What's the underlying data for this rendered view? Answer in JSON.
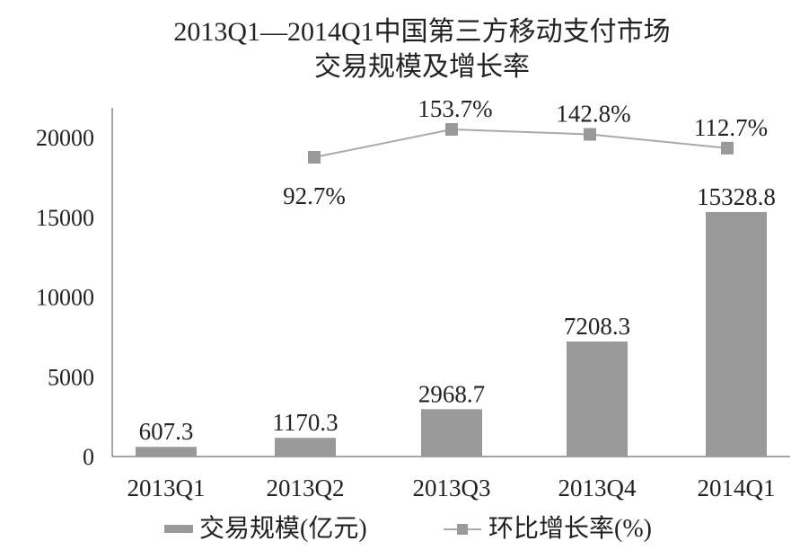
{
  "chart_data": {
    "type": "bar+line",
    "title": "2013Q1—2014Q1中国第三方移动支付市场",
    "subtitle": "交易规模及增长率",
    "categories": [
      "2013Q1",
      "2013Q2",
      "2013Q3",
      "2013Q4",
      "2014Q1"
    ],
    "series": [
      {
        "name": "交易规模(亿元)",
        "type": "bar",
        "values": [
          607.3,
          1170.3,
          2968.7,
          7208.3,
          15328.8
        ],
        "labels": [
          "607.3",
          "1170.3",
          "2968.7",
          "7208.3",
          "15328.8"
        ],
        "color": "#999999"
      },
      {
        "name": "环比增长率(%)",
        "type": "line",
        "values": [
          null,
          92.7,
          153.7,
          142.8,
          112.7
        ],
        "labels": [
          "",
          "92.7%",
          "153.7%",
          "142.8%",
          "112.7%"
        ],
        "color": "#999999",
        "marker": "square"
      }
    ],
    "yticks": [
      "0",
      "5000",
      "10000",
      "15000",
      "20000"
    ],
    "ylim": [
      0,
      20000
    ],
    "grid": false,
    "legend": "bottom"
  }
}
